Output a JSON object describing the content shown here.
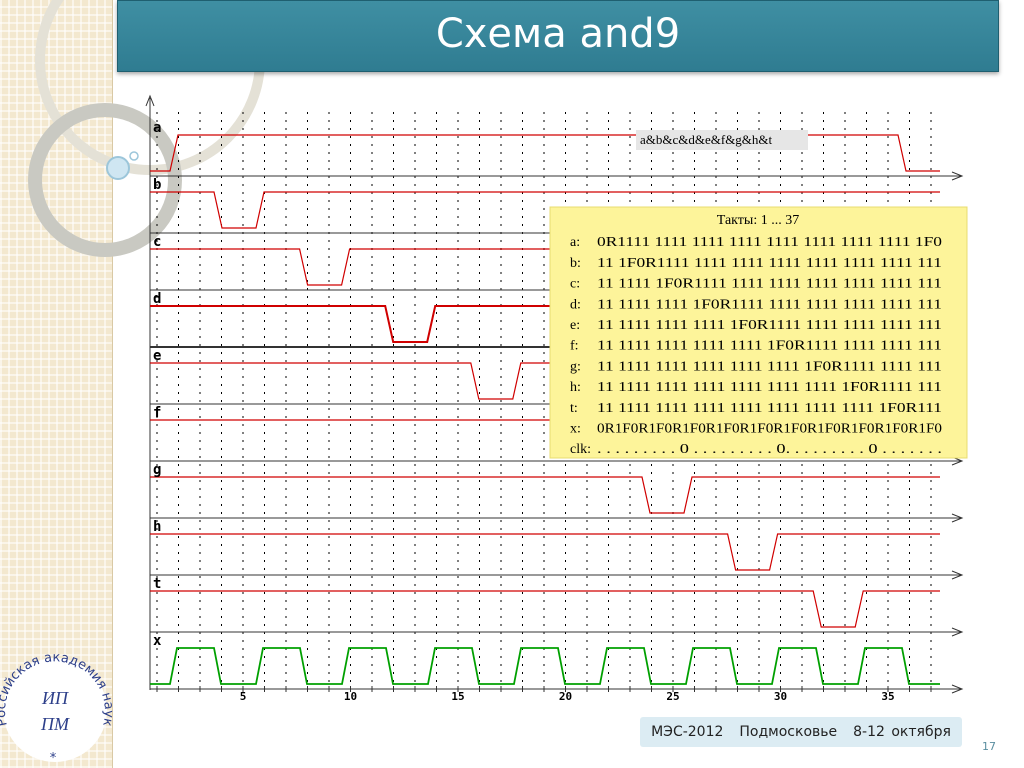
{
  "header": {
    "title": "Схема and9"
  },
  "diagram": {
    "signals": [
      "a",
      "b",
      "c",
      "d",
      "e",
      "f",
      "g",
      "h",
      "t",
      "x"
    ],
    "x_axis_labels": [
      "5",
      "10",
      "15",
      "20",
      "25",
      "30",
      "35"
    ],
    "expression": "a&b&c&d&e&f&g&h&t",
    "table": {
      "title": "Такты: 1 ... 37",
      "rows": [
        [
          "a:",
          "0R1111 1111 1111 1111 1111 1111 1111 1111 1F0"
        ],
        [
          "b:",
          "11 1F0R1111 1111 1111 1111 1111 1111 1111 111"
        ],
        [
          "c:",
          "11 1111 1F0R1111 1111 1111 1111 1111 1111 111"
        ],
        [
          "d:",
          "11 1111 1111 1F0R1111 1111 1111 1111 1111 111"
        ],
        [
          "e:",
          "11 1111 1111 1111 1F0R1111 1111 1111 1111 111"
        ],
        [
          "f:",
          "11 1111 1111 1111 1111 1F0R1111 1111 1111 111"
        ],
        [
          "g:",
          "11 1111 1111 1111 1111 1111 1F0R1111 1111 111"
        ],
        [
          "h:",
          "11 1111 1111 1111 1111 1111 1111 1F0R1111 111"
        ],
        [
          "t:",
          "11 1111 1111 1111 1111 1111 1111 1111 1F0R111"
        ],
        [
          "x:",
          "0R1F0R1F0R1F0R1F0R1F0R1F0R1F0R1F0R1F0R1F0"
        ],
        [
          "clk:",
          ". . . . . . . . . 0 . . . . . . . . . 0. . . . . . . . . 0 . . . . . . ."
        ]
      ]
    }
  },
  "footer": {
    "event": "МЭС-2012",
    "place": "Подмосковье",
    "dates": "8-12 октября"
  },
  "page_number": "17",
  "logo": {
    "ring": "Российская академия наук",
    "top": "ИП",
    "bottom": "ПМ",
    "star": "*"
  }
}
